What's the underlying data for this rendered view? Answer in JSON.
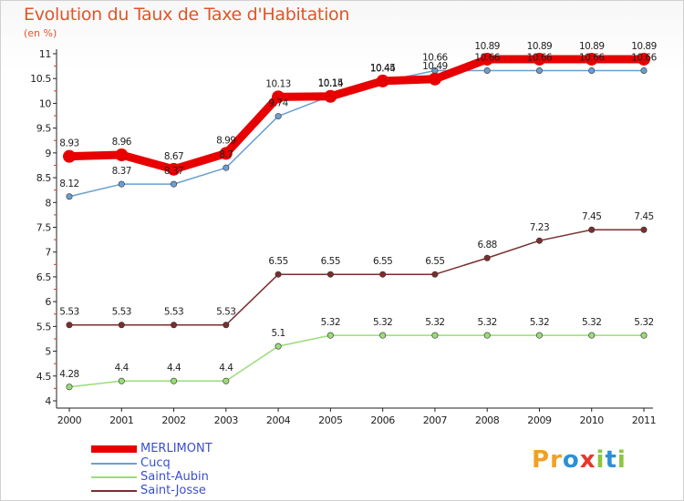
{
  "title": "Evolution du Taux de Taxe d'Habitation",
  "subtitle": "(en %)",
  "logo": "Proxiti",
  "chart_data": {
    "type": "line",
    "title": "Evolution du Taux de Taxe d'Habitation",
    "ylabel": "(en %)",
    "xlabel": "",
    "x": [
      "2000",
      "2001",
      "2002",
      "2003",
      "2004",
      "2005",
      "2006",
      "2007",
      "2008",
      "2009",
      "2010",
      "2011"
    ],
    "ylim": [
      4,
      11
    ],
    "yticks": [
      "4",
      "4.5",
      "5",
      "5.5",
      "6",
      "6.5",
      "7",
      "7.5",
      "8",
      "8.5",
      "9",
      "9.5",
      "10",
      "10.5",
      "11"
    ],
    "grid": false,
    "legend_position": "bottom-left",
    "series": [
      {
        "name": "MERLIMONT",
        "color": "#e80000",
        "values": [
          8.93,
          8.96,
          8.67,
          8.99,
          10.13,
          10.14,
          10.45,
          10.49,
          10.89,
          10.89,
          10.89,
          10.89
        ],
        "labels": [
          "8.93",
          "8.96",
          "8.67",
          "8.99",
          "10.13",
          "10.14",
          "10.45",
          "10.49",
          "10.89",
          "10.89",
          "10.89",
          "10.89"
        ]
      },
      {
        "name": "Cucq",
        "color": "#6a9fd0",
        "values": [
          8.12,
          8.37,
          8.37,
          8.7,
          9.74,
          10.15,
          10.44,
          10.66,
          10.66,
          10.66,
          10.66,
          10.66
        ],
        "labels": [
          "8.12",
          "8.37",
          "8.37",
          "8.7",
          "9.74",
          "10.15",
          "10.44",
          "10.66",
          "10.66",
          "10.66",
          "10.66",
          "10.66"
        ]
      },
      {
        "name": "Saint-Aubin",
        "color": "#99dd77",
        "values": [
          4.28,
          4.4,
          4.4,
          4.4,
          5.1,
          5.32,
          5.32,
          5.32,
          5.32,
          5.32,
          5.32,
          5.32
        ],
        "labels": [
          "4.28",
          "4.4",
          "4.4",
          "4.4",
          "5.1",
          "5.32",
          "5.32",
          "5.32",
          "5.32",
          "5.32",
          "5.32",
          "5.32"
        ]
      },
      {
        "name": "Saint-Josse",
        "color": "#7a2e2e",
        "values": [
          5.53,
          5.53,
          5.53,
          5.53,
          6.55,
          6.55,
          6.55,
          6.55,
          6.88,
          7.23,
          7.45,
          7.45
        ],
        "labels": [
          "5.53",
          "5.53",
          "5.53",
          "5.53",
          "6.55",
          "6.55",
          "6.55",
          "6.55",
          "6.88",
          "7.23",
          "7.45",
          "7.45"
        ]
      }
    ]
  }
}
